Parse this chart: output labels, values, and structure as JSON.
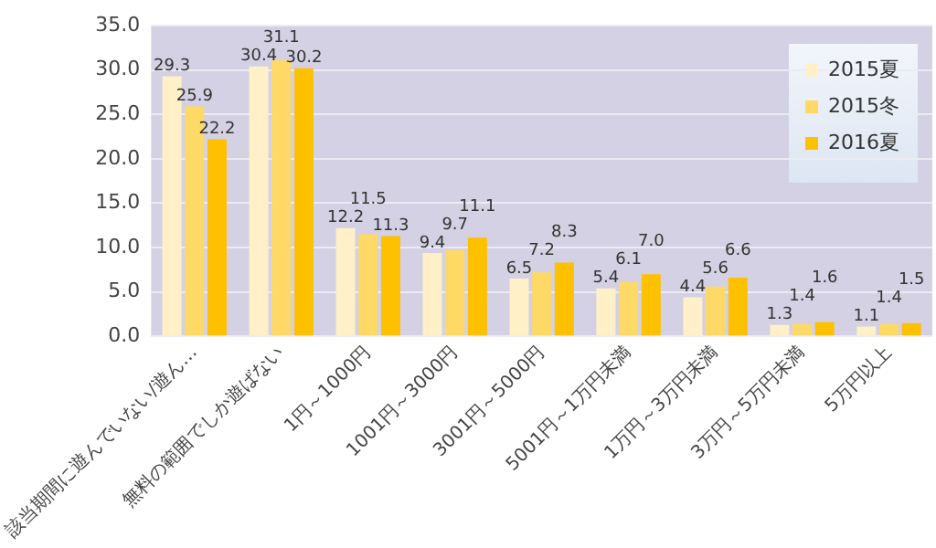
{
  "chart_data": {
    "type": "bar",
    "categories": [
      "該当期間に遊んでいない/遊ん…",
      "無料の範囲でしか遊ばない",
      "1円～1000円",
      "1001円～3000円",
      "3001円～5000円",
      "5001円～1万円未満",
      "1万円～3万円未満",
      "3万円～5万円未満",
      "5万円以上"
    ],
    "series": [
      {
        "name": "2015夏",
        "color": "#fff0c8",
        "values": [
          29.3,
          30.4,
          12.2,
          9.4,
          6.5,
          5.4,
          4.4,
          1.3,
          1.1
        ],
        "value_labels": [
          "29.3",
          "30.4",
          "12.2",
          "9.4",
          "6.5",
          "5.4",
          "4.4",
          "1.3",
          "1.1"
        ]
      },
      {
        "name": "2015冬",
        "color": "#ffd966",
        "values": [
          25.9,
          31.1,
          11.5,
          9.7,
          7.2,
          6.1,
          5.6,
          1.4,
          1.4
        ],
        "value_labels": [
          "25.9",
          "31.1",
          "11.5",
          "9.7",
          "7.2",
          "6.1",
          "5.6",
          "1.4",
          "1.4"
        ]
      },
      {
        "name": "2016夏",
        "color": "#ffc000",
        "values": [
          22.2,
          30.2,
          11.3,
          11.1,
          8.3,
          7.0,
          6.6,
          1.6,
          1.5
        ],
        "value_labels": [
          "22.2",
          "30.2",
          "11.3",
          "11.1",
          "8.3",
          "7.0",
          "6.6",
          "1.6",
          "1.5"
        ]
      }
    ],
    "ylim": [
      0,
      35
    ],
    "yticks": [
      {
        "value": 0,
        "label": "0.0"
      },
      {
        "value": 5,
        "label": "5.0"
      },
      {
        "value": 10,
        "label": "10.0"
      },
      {
        "value": 15,
        "label": "15.0"
      },
      {
        "value": 20,
        "label": "20.0"
      },
      {
        "value": 25,
        "label": "25.0"
      },
      {
        "value": 30,
        "label": "30.0"
      },
      {
        "value": 35,
        "label": "35.0"
      }
    ],
    "grid": "y",
    "legend": "top right"
  }
}
